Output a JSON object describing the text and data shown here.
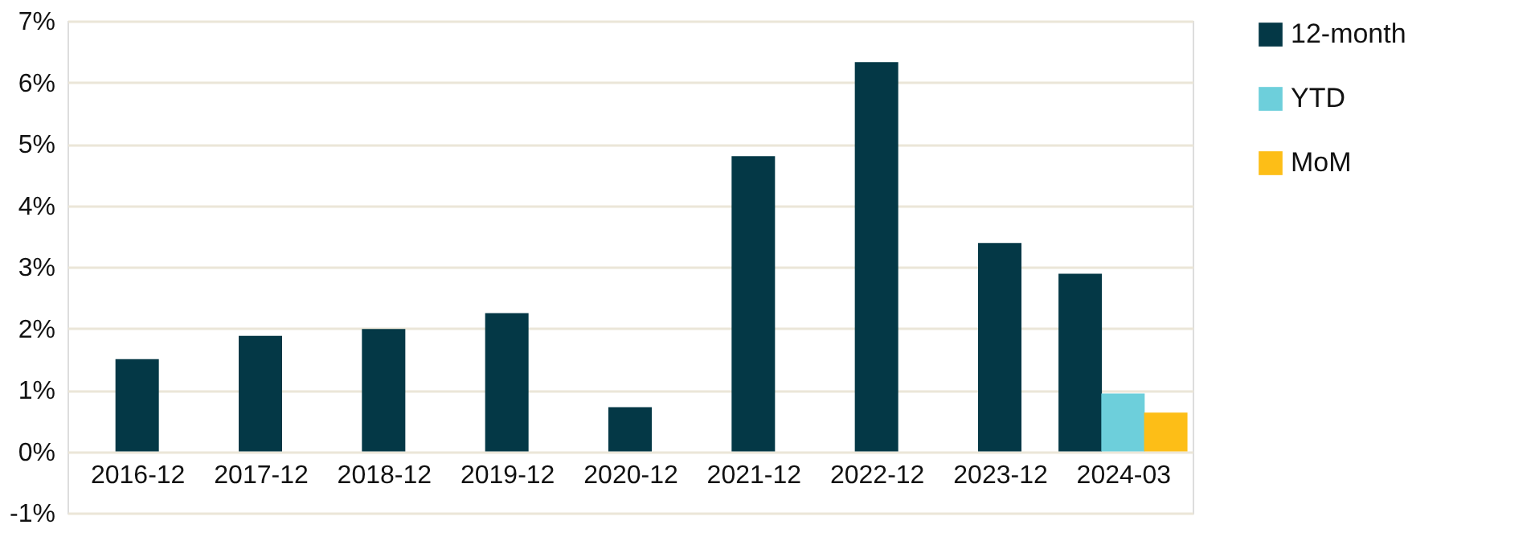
{
  "chart_data": {
    "type": "bar",
    "categories": [
      "2016-12",
      "2017-12",
      "2018-12",
      "2019-12",
      "2020-12",
      "2021-12",
      "2022-12",
      "2023-12",
      "2024-03"
    ],
    "series": [
      {
        "name": "12-month",
        "color": "#043846",
        "values": [
          1.5,
          1.88,
          1.99,
          2.25,
          0.72,
          4.8,
          6.33,
          3.39,
          2.89
        ]
      },
      {
        "name": "YTD",
        "color": "#6dcfdb",
        "values": [
          null,
          null,
          null,
          null,
          null,
          null,
          null,
          null,
          0.94
        ]
      },
      {
        "name": "MoM",
        "color": "#fdbe17",
        "values": [
          null,
          null,
          null,
          null,
          null,
          null,
          null,
          null,
          0.63
        ]
      }
    ],
    "ylim": [
      -1,
      7
    ],
    "yticks": [
      {
        "value": -1,
        "label": "-1%"
      },
      {
        "value": 0,
        "label": "0%"
      },
      {
        "value": 1,
        "label": "1%"
      },
      {
        "value": 2,
        "label": "2%"
      },
      {
        "value": 3,
        "label": "3%"
      },
      {
        "value": 4,
        "label": "4%"
      },
      {
        "value": 5,
        "label": "5%"
      },
      {
        "value": 6,
        "label": "6%"
      },
      {
        "value": 7,
        "label": "7%"
      }
    ],
    "grid": "y",
    "legend": "right"
  }
}
